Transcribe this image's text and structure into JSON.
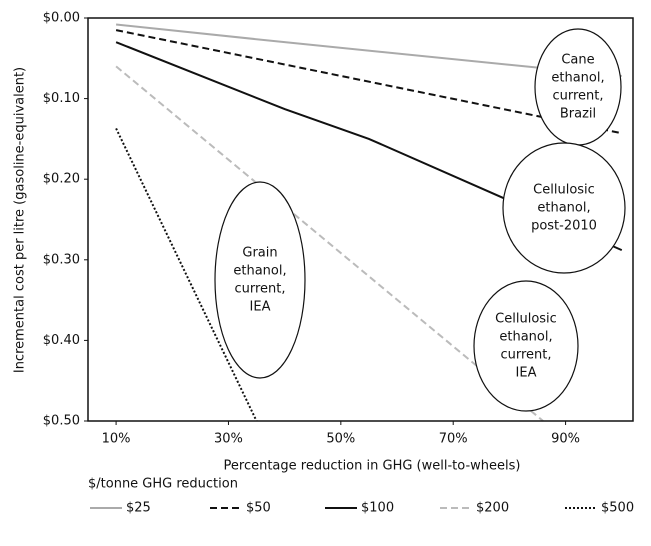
{
  "chart_data": {
    "type": "line",
    "x_label": "Percentage reduction in GHG (well-to-wheels)",
    "y_label": "Incremental cost per litre (gasoline-equivalent)",
    "legend_title": "$/tonne GHG reduction",
    "xlim": [
      5,
      102
    ],
    "xticks": [
      {
        "value": 10,
        "label": "10%"
      },
      {
        "value": 30,
        "label": "30%"
      },
      {
        "value": 50,
        "label": "50%"
      },
      {
        "value": 70,
        "label": "70%"
      },
      {
        "value": 90,
        "label": "90%"
      }
    ],
    "ylim": [
      0,
      0.5
    ],
    "y_inverted": true,
    "yticks": [
      {
        "value": 0,
        "label": "$0.00"
      },
      {
        "value": 0.1,
        "label": "$0.10"
      },
      {
        "value": 0.2,
        "label": "$0.20"
      },
      {
        "value": 0.3,
        "label": "$0.30"
      },
      {
        "value": 0.4,
        "label": "$0.40"
      },
      {
        "value": 0.5,
        "label": "$0.50"
      }
    ],
    "legend": "bottom",
    "series": [
      {
        "name": "$25",
        "color": "#aaaaaa",
        "style": "solid",
        "x": [
          10,
          40,
          100
        ],
        "values": [
          0.008,
          0.03,
          0.072
        ]
      },
      {
        "name": "$50",
        "color": "#111111",
        "style": "dashed",
        "x": [
          10,
          100
        ],
        "values": [
          0.015,
          0.143
        ]
      },
      {
        "name": "$100",
        "color": "#111111",
        "style": "solid",
        "x": [
          10,
          40,
          55,
          100
        ],
        "values": [
          0.03,
          0.113,
          0.15,
          0.288
        ]
      },
      {
        "name": "$200",
        "color": "#bbbbbb",
        "style": "dashed",
        "x": [
          10,
          86
        ],
        "values": [
          0.06,
          0.5
        ]
      },
      {
        "name": "$500",
        "color": "#111111",
        "style": "dotted",
        "x": [
          10,
          35
        ],
        "values": [
          0.137,
          0.5
        ]
      }
    ],
    "annotations": [
      {
        "lines": [
          "Cane",
          "ethanol,",
          "current,",
          "Brazil"
        ]
      },
      {
        "lines": [
          "Cellulosic",
          "ethanol,",
          "post-2010"
        ]
      },
      {
        "lines": [
          "Grain",
          "ethanol,",
          "current,",
          "IEA"
        ]
      },
      {
        "lines": [
          "Cellulosic",
          "ethanol,",
          "current,",
          "IEA"
        ]
      }
    ]
  }
}
